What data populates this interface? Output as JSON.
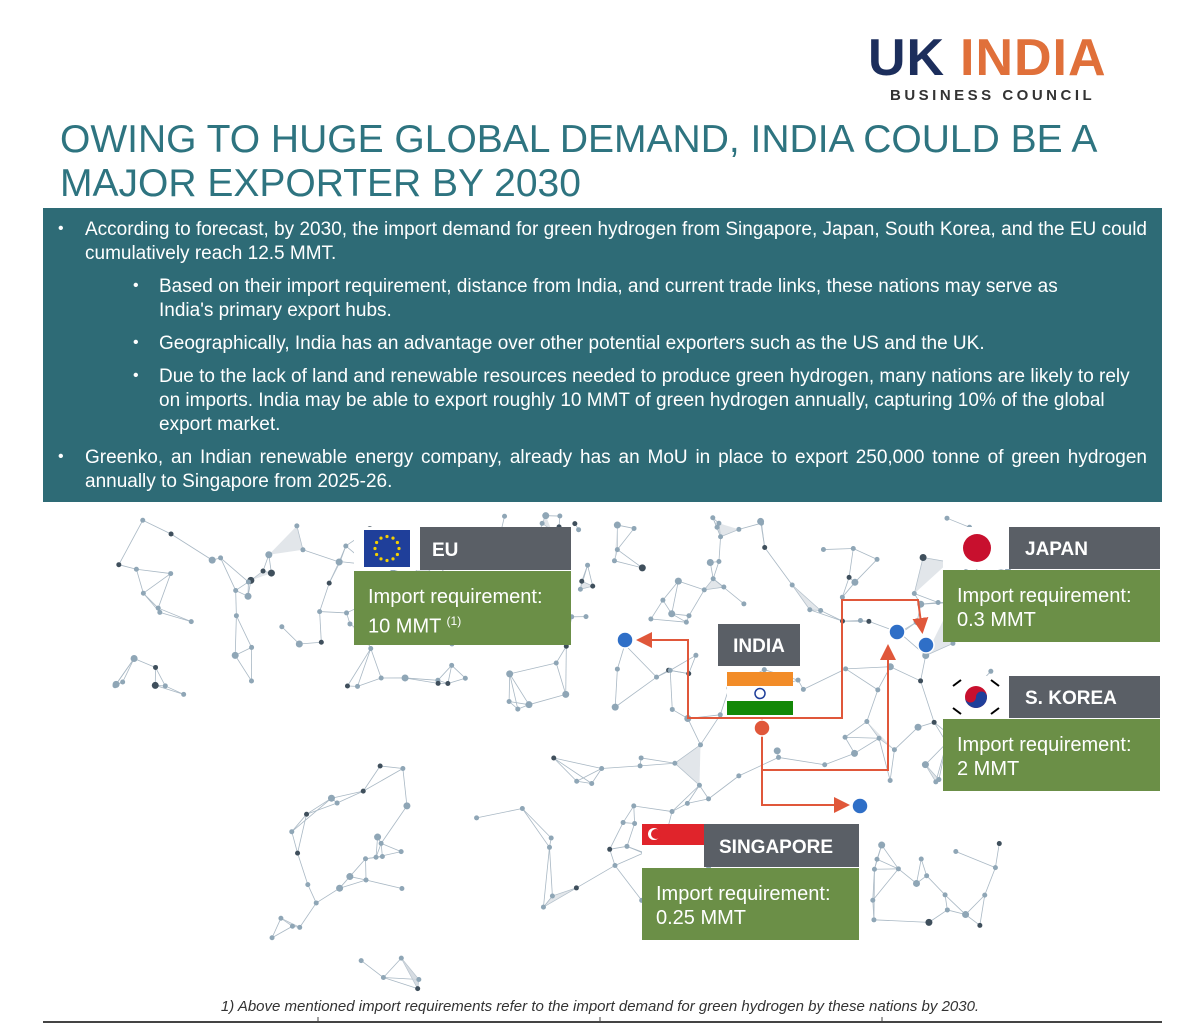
{
  "logo": {
    "uk": "UK",
    "india": "INDIA",
    "tagline": "BUSINESS COUNCIL"
  },
  "title": "OWING TO HUGE GLOBAL DEMAND, INDIA COULD BE A MAJOR EXPORTER BY 2030",
  "bullets": [
    {
      "text": "According to forecast, by 2030, the import demand for green hydrogen from Singapore, Japan, South Korea, and the EU could cumulatively reach 12.5 MMT.",
      "sub": [
        "Based on their import requirement, distance from India, and current trade links, these nations may serve as India's primary export hubs.",
        "Geographically, India has an advantage over other potential exporters such as the US and the UK.",
        "Due to the lack of land and renewable resources needed to produce green hydrogen, many nations are likely to rely on imports. India may be able to export roughly 10 MMT of green hydrogen annually, capturing 10% of the global export market."
      ]
    },
    {
      "text": "Greenko, an Indian renewable energy company, already has an MoU in place to export 250,000 tonne of green hydrogen annually to Singapore from 2025-26."
    }
  ],
  "map": {
    "origin": "INDIA",
    "destinations": [
      {
        "name": "EU",
        "label": "Import requirement:",
        "value": "10 MMT",
        "note": "(1)"
      },
      {
        "name": "JAPAN",
        "label": "Import requirement:",
        "value": "0.3 MMT"
      },
      {
        "name": "S. KOREA",
        "label": "Import requirement:",
        "value": "2 MMT"
      },
      {
        "name": "SINGAPORE",
        "label": "Import requirement:",
        "value": "0.25 MMT"
      }
    ]
  },
  "footnote": "1) Above mentioned import requirements refer to the import demand for green hydrogen by these nations by 2030."
}
